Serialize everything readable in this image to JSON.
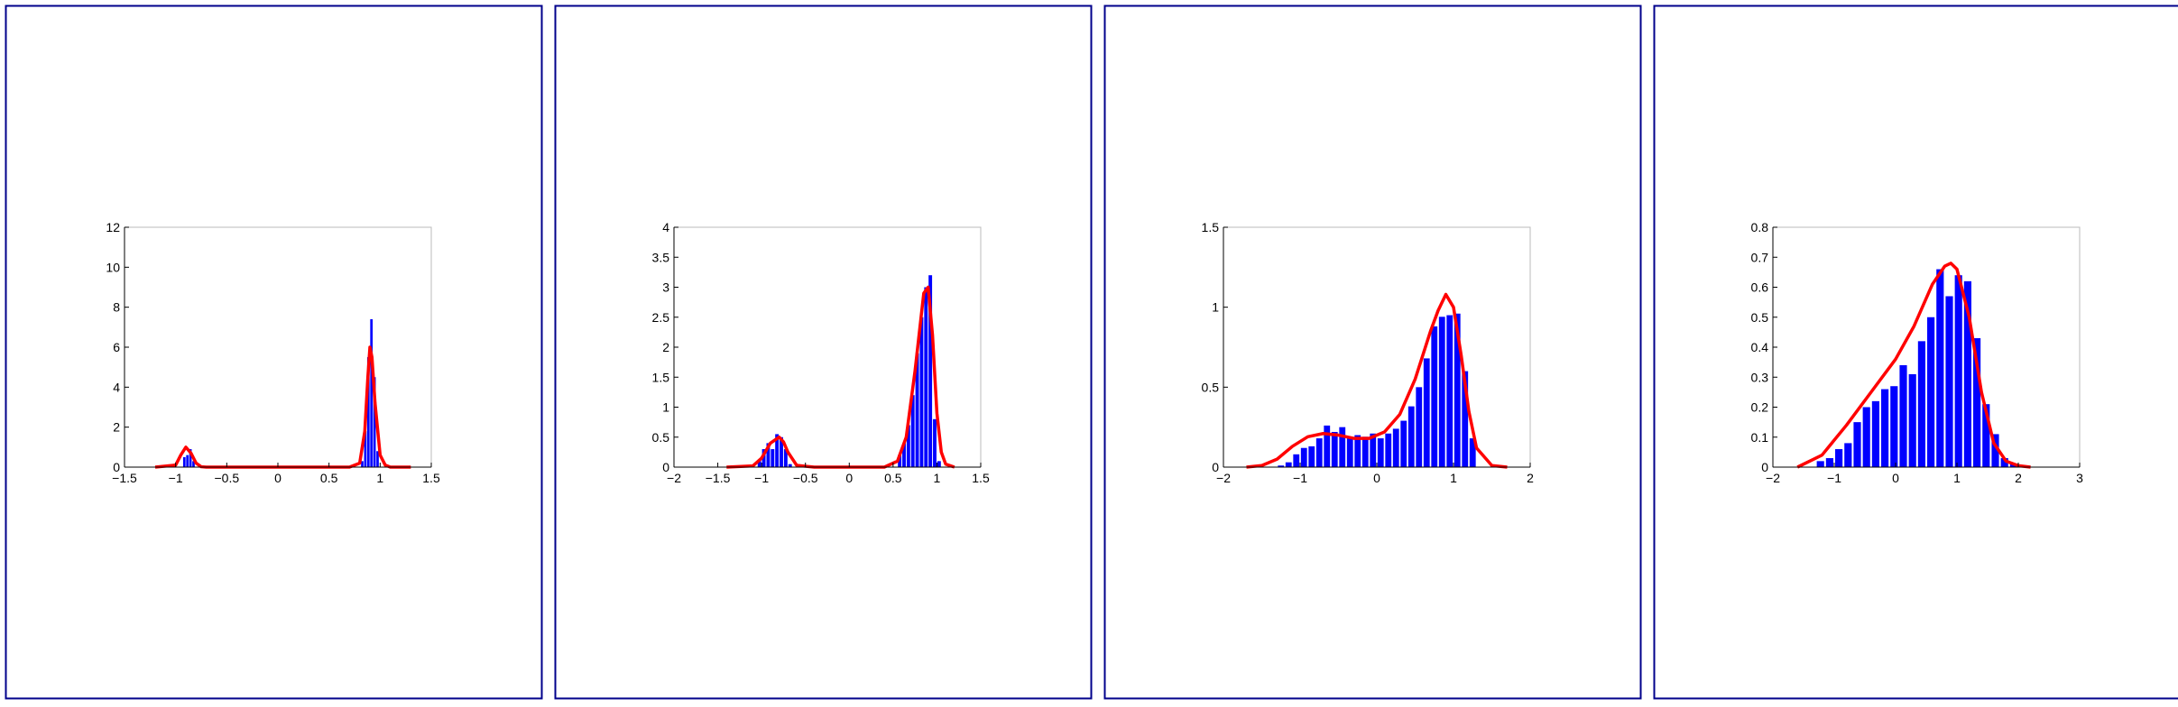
{
  "chart_data": [
    {
      "type": "histogram",
      "bins": [
        -0.93,
        -0.9,
        -0.87,
        -0.84,
        -0.81,
        -0.78,
        -0.75,
        -0.72,
        -0.69,
        -0.66,
        -0.63,
        -0.6,
        -0.57,
        -0.54,
        -0.51,
        -0.48,
        -0.45,
        -0.42,
        -0.39,
        -0.36,
        -0.33,
        -0.3,
        -0.27,
        -0.24,
        -0.21,
        -0.18,
        -0.15,
        -0.12,
        -0.09,
        -0.06,
        -0.03,
        0,
        0.03,
        0.06,
        0.09,
        0.12,
        0.15,
        0.18,
        0.21,
        0.24,
        0.27,
        0.3,
        0.33,
        0.36,
        0.39,
        0.42,
        0.45,
        0.48,
        0.51,
        0.54,
        0.57,
        0.6,
        0.63,
        0.66,
        0.69,
        0.72,
        0.75,
        0.78,
        0.81,
        0.84,
        0.87,
        0.9,
        0.93,
        0.96,
        0.99
      ],
      "values": [
        0.5,
        0.6,
        0.9,
        0.3,
        0,
        0,
        0,
        0,
        0,
        0,
        0,
        0,
        0,
        0,
        0,
        0,
        0,
        0,
        0,
        0,
        0,
        0,
        0,
        0,
        0,
        0,
        0,
        0,
        0,
        0,
        0,
        0,
        0,
        0,
        0,
        0,
        0,
        0,
        0,
        0,
        0,
        0,
        0,
        0,
        0,
        0,
        0,
        0,
        0,
        0,
        0,
        0,
        0,
        0,
        0,
        0,
        0,
        0,
        0.3,
        1.8,
        5.5,
        7.4,
        4.5,
        0.8
      ],
      "color": "#0000ff",
      "curve": {
        "x": [
          -1.2,
          -1.0,
          -0.95,
          -0.9,
          -0.85,
          -0.8,
          -0.75,
          -0.7,
          0.7,
          0.8,
          0.85,
          0.88,
          0.9,
          0.92,
          0.95,
          1.0,
          1.05,
          1.1,
          1.3
        ],
        "y": [
          0,
          0.1,
          0.6,
          1.0,
          0.7,
          0.2,
          0.02,
          0,
          0,
          0.2,
          1.8,
          4.5,
          6.0,
          5.5,
          3.2,
          0.6,
          0.1,
          0,
          0
        ],
        "color": "#ff0000"
      },
      "xlim": [
        -1.5,
        1.5
      ],
      "ylim": [
        0,
        12
      ],
      "xticks": [
        {
          "value": -1.5,
          "label": "−1.5"
        },
        {
          "value": -1,
          "label": "−1"
        },
        {
          "value": -0.5,
          "label": "−0.5"
        },
        0,
        0.5,
        1,
        1.5
      ],
      "yticks": [
        0,
        2,
        4,
        6,
        8,
        10,
        12
      ]
    },
    {
      "type": "histogram",
      "bins": [
        -1.05,
        -1.0,
        -0.95,
        -0.9,
        -0.85,
        -0.8,
        -0.75,
        -0.7,
        -0.65,
        -0.6,
        -0.55,
        -0.5,
        -0.45,
        -0.4,
        -0.35,
        -0.3,
        -0.25,
        -0.2,
        -0.15,
        -0.1,
        -0.05,
        0,
        0.05,
        0.1,
        0.15,
        0.2,
        0.25,
        0.3,
        0.35,
        0.4,
        0.45,
        0.5,
        0.55,
        0.6,
        0.65,
        0.7,
        0.75,
        0.8,
        0.85,
        0.9,
        0.95,
        1.0,
        1.05
      ],
      "values": [
        0.1,
        0.3,
        0.4,
        0.3,
        0.55,
        0.5,
        0.3,
        0.05,
        0,
        0,
        0,
        0,
        0,
        0,
        0,
        0,
        0,
        0,
        0,
        0,
        0,
        0,
        0,
        0,
        0,
        0,
        0,
        0,
        0,
        0,
        0,
        0,
        0.2,
        0.4,
        0.7,
        1.2,
        1.9,
        2.5,
        3.0,
        3.2,
        0.8,
        0.1
      ],
      "color": "#0000ff",
      "curve": {
        "x": [
          -1.4,
          -1.1,
          -1.0,
          -0.9,
          -0.8,
          -0.75,
          -0.7,
          -0.6,
          -0.4,
          0.4,
          0.55,
          0.65,
          0.75,
          0.85,
          0.9,
          0.95,
          1.0,
          1.05,
          1.1,
          1.2
        ],
        "y": [
          0,
          0.02,
          0.15,
          0.4,
          0.5,
          0.42,
          0.25,
          0.03,
          0,
          0,
          0.1,
          0.5,
          1.6,
          2.9,
          3.0,
          2.2,
          0.9,
          0.25,
          0.05,
          0
        ],
        "color": "#ff0000"
      },
      "xlim": [
        -2,
        1.5
      ],
      "ylim": [
        0,
        4
      ],
      "xticks": [
        {
          "value": -2,
          "label": "−2"
        },
        {
          "value": -1.5,
          "label": "−1.5"
        },
        {
          "value": -1,
          "label": "−1"
        },
        {
          "value": -0.5,
          "label": "−0.5"
        },
        0,
        0.5,
        1,
        1.5
      ],
      "yticks": [
        0,
        0.5,
        1,
        1.5,
        2,
        2.5,
        3,
        3.5,
        4
      ]
    },
    {
      "type": "histogram",
      "bins": [
        -1.3,
        -1.2,
        -1.1,
        -1.0,
        -0.9,
        -0.8,
        -0.7,
        -0.6,
        -0.5,
        -0.4,
        -0.3,
        -0.2,
        -0.1,
        0,
        0.1,
        0.2,
        0.3,
        0.4,
        0.5,
        0.6,
        0.7,
        0.8,
        0.9,
        1.0,
        1.1,
        1.2,
        1.3
      ],
      "values": [
        0.01,
        0.03,
        0.08,
        0.12,
        0.13,
        0.18,
        0.26,
        0.22,
        0.25,
        0.18,
        0.2,
        0.19,
        0.21,
        0.18,
        0.21,
        0.24,
        0.29,
        0.38,
        0.5,
        0.68,
        0.88,
        0.94,
        0.95,
        0.96,
        0.6,
        0.18
      ],
      "color": "#0000ff",
      "curve": {
        "x": [
          -1.7,
          -1.5,
          -1.3,
          -1.1,
          -0.9,
          -0.7,
          -0.5,
          -0.3,
          -0.1,
          0.1,
          0.3,
          0.5,
          0.7,
          0.8,
          0.9,
          1.0,
          1.1,
          1.2,
          1.3,
          1.5,
          1.7
        ],
        "y": [
          0,
          0.01,
          0.05,
          0.13,
          0.19,
          0.21,
          0.2,
          0.18,
          0.18,
          0.22,
          0.33,
          0.55,
          0.85,
          0.98,
          1.08,
          1.0,
          0.7,
          0.35,
          0.12,
          0.01,
          0
        ],
        "color": "#ff0000"
      },
      "xlim": [
        -2,
        2
      ],
      "ylim": [
        0,
        1.5
      ],
      "xticks": [
        {
          "value": -2,
          "label": "−2"
        },
        {
          "value": -1,
          "label": "−1"
        },
        0,
        1,
        2
      ],
      "yticks": [
        0,
        0.5,
        1,
        1.5
      ]
    },
    {
      "type": "histogram",
      "bins": [
        -1.3,
        -1.15,
        -1.0,
        -0.85,
        -0.7,
        -0.55,
        -0.4,
        -0.25,
        -0.1,
        0.05,
        0.2,
        0.35,
        0.5,
        0.65,
        0.8,
        0.95,
        1.1,
        1.25,
        1.4,
        1.55,
        1.7,
        1.85,
        2.0
      ],
      "values": [
        0.02,
        0.03,
        0.06,
        0.08,
        0.15,
        0.2,
        0.22,
        0.26,
        0.27,
        0.34,
        0.31,
        0.42,
        0.5,
        0.66,
        0.57,
        0.64,
        0.62,
        0.43,
        0.21,
        0.11,
        0.03,
        0.01
      ],
      "color": "#0000ff",
      "curve": {
        "x": [
          -1.6,
          -1.2,
          -0.8,
          -0.4,
          0,
          0.3,
          0.6,
          0.8,
          0.9,
          1.0,
          1.2,
          1.4,
          1.6,
          1.8,
          2.0,
          2.2
        ],
        "y": [
          0,
          0.04,
          0.14,
          0.25,
          0.36,
          0.47,
          0.61,
          0.67,
          0.68,
          0.66,
          0.5,
          0.25,
          0.08,
          0.02,
          0.005,
          0
        ],
        "color": "#ff0000"
      },
      "xlim": [
        -2,
        3
      ],
      "ylim": [
        0,
        0.8
      ],
      "xticks": [
        {
          "value": -2,
          "label": "−2"
        },
        {
          "value": -1,
          "label": "−1"
        },
        0,
        1,
        2,
        3
      ],
      "yticks": [
        0,
        0.1,
        0.2,
        0.3,
        0.4,
        0.5,
        0.6,
        0.7,
        0.8
      ]
    }
  ]
}
